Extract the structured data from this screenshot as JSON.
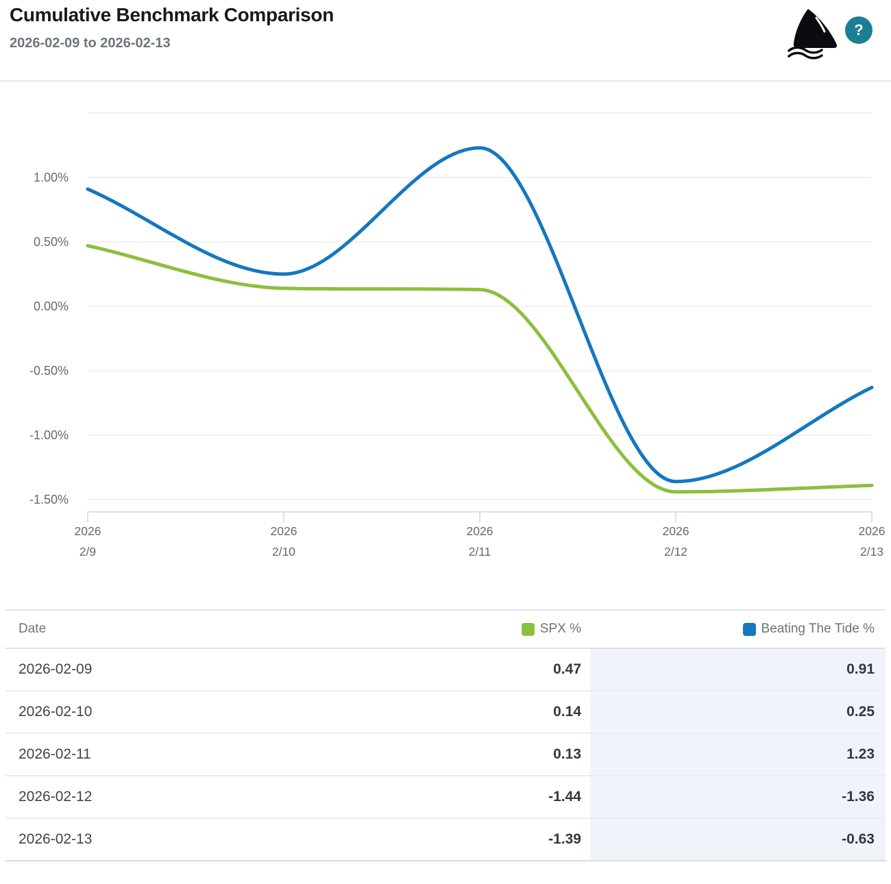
{
  "header": {
    "title": "Cumulative Benchmark Comparison",
    "subtitle": "2026-02-09 to 2026-02-13",
    "help_label": "?"
  },
  "chart_data": {
    "type": "line",
    "curve": "spline",
    "x": [
      "2026-02-09",
      "2026-02-10",
      "2026-02-11",
      "2026-02-12",
      "2026-02-13"
    ],
    "x_tick_labels": [
      {
        "year": "2026",
        "date": "2/9"
      },
      {
        "year": "2026",
        "date": "2/10"
      },
      {
        "year": "2026",
        "date": "2/11"
      },
      {
        "year": "2026",
        "date": "2/12"
      },
      {
        "year": "2026",
        "date": "2/13"
      }
    ],
    "series": [
      {
        "name": "SPX %",
        "color": "#8cbf3f",
        "values": [
          0.47,
          0.14,
          0.13,
          -1.44,
          -1.39
        ]
      },
      {
        "name": "Beating The Tide %",
        "color": "#1478be",
        "values": [
          0.91,
          0.25,
          1.23,
          -1.36,
          -0.63
        ]
      }
    ],
    "y_ticks": [
      {
        "value": 1.5,
        "label": ""
      },
      {
        "value": 1.0,
        "label": "1.00%"
      },
      {
        "value": 0.5,
        "label": "0.50%"
      },
      {
        "value": 0.0,
        "label": "0.00%"
      },
      {
        "value": -0.5,
        "label": "-0.50%"
      },
      {
        "value": -1.0,
        "label": "-1.00%"
      },
      {
        "value": -1.5,
        "label": "-1.50%"
      }
    ],
    "ylim": [
      -1.6,
      1.5
    ],
    "unit": "%",
    "grid": "horizontal",
    "legend_position": "table-header"
  },
  "table": {
    "columns": [
      {
        "label": "Date"
      },
      {
        "label": "SPX %",
        "swatch": "#8cbf3f"
      },
      {
        "label": "Beating The Tide %",
        "swatch": "#1478be"
      }
    ],
    "rows": [
      {
        "date": "2026-02-09",
        "spx": "0.47",
        "benchmark": "0.91"
      },
      {
        "date": "2026-02-10",
        "spx": "0.14",
        "benchmark": "0.25"
      },
      {
        "date": "2026-02-11",
        "spx": "0.13",
        "benchmark": "1.23"
      },
      {
        "date": "2026-02-12",
        "spx": "-1.44",
        "benchmark": "-1.36"
      },
      {
        "date": "2026-02-13",
        "spx": "-1.39",
        "benchmark": "-0.63"
      }
    ]
  },
  "colors": {
    "spx_line": "#8cbf3f",
    "benchmark_line": "#1478be",
    "help_badge": "#1c7e93",
    "grid_line": "#e6e6e6",
    "axis_line": "#c6d9e8",
    "highlight_column_bg": "#f0f4fa"
  }
}
